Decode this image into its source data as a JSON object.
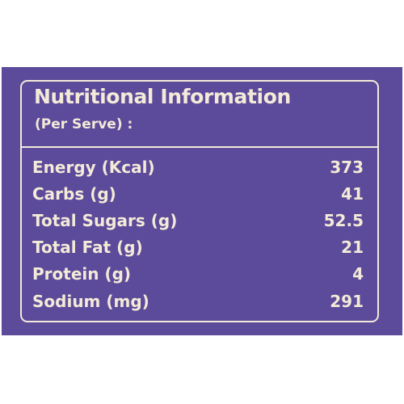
{
  "card": {
    "title": "Nutritional Information",
    "subtitle": "(Per Serve) :"
  },
  "rows": [
    {
      "label": "Energy (Kcal)",
      "value": "373"
    },
    {
      "label": "Carbs (g)",
      "value": "41"
    },
    {
      "label": "Total Sugars (g)",
      "value": "52.5"
    },
    {
      "label": "Total Fat (g)",
      "value": "21"
    },
    {
      "label": "Protein (g)",
      "value": "4"
    },
    {
      "label": "Sodium (mg)",
      "value": "291"
    }
  ],
  "colors": {
    "background": "#5c4a9a",
    "text": "#f3ead8"
  }
}
